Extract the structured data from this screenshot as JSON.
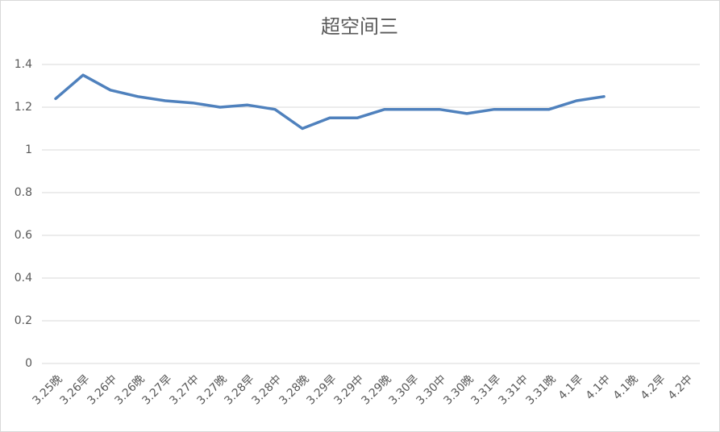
{
  "chart_data": {
    "type": "line",
    "title": "超空间三",
    "categories": [
      "3.25晚",
      "3.26早",
      "3.26中",
      "3.26晚",
      "3.27早",
      "3.27中",
      "3.27晚",
      "3.28早",
      "3.28中",
      "3.28晚",
      "3.29早",
      "3.29中",
      "3.29晚",
      "3.30早",
      "3.30中",
      "3.30晚",
      "3.31早",
      "3.31中",
      "3.31晚",
      "4.1早",
      "4.1中",
      "4.1晚",
      "4.2早",
      "4.2中"
    ],
    "series": [
      {
        "color": "#4f81bd",
        "values": [
          1.24,
          1.35,
          1.28,
          1.25,
          1.23,
          1.22,
          1.2,
          1.21,
          1.19,
          1.1,
          1.15,
          1.15,
          1.19,
          1.19,
          1.19,
          1.17,
          1.19,
          1.19,
          1.19,
          1.23,
          1.25,
          null,
          null,
          null
        ]
      }
    ],
    "ylim": [
      0,
      1.4
    ],
    "yticks": [
      0,
      0.2,
      0.4,
      0.6,
      0.8,
      1,
      1.2,
      1.4
    ],
    "grid": true
  }
}
